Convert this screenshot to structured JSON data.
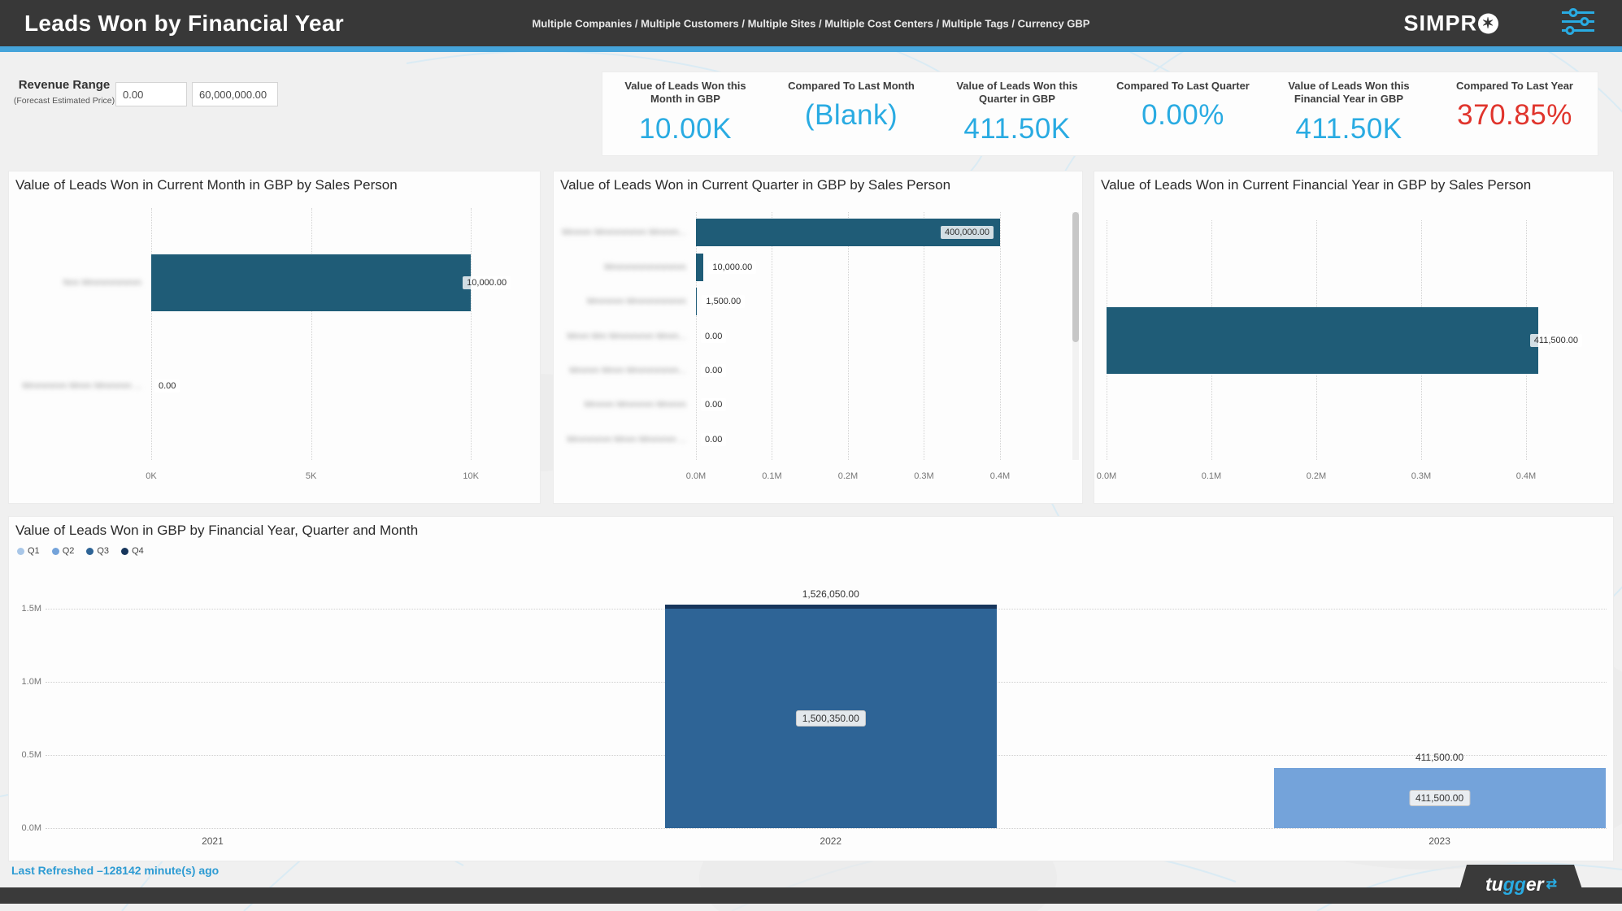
{
  "header": {
    "title": "Leads Won by Financial Year",
    "breadcrumb": "Multiple Companies / Multiple Customers / Multiple Sites / Multiple Cost Centers / Multiple Tags / Currency GBP",
    "brand_prefix": "SIMPR",
    "brand_o_star": "✶"
  },
  "colors": {
    "header_bg": "#383838",
    "accent": "#45a4da",
    "kpi_blue": "#29abe2",
    "kpi_red": "#e0342c",
    "bar_teal": "#1f5c77"
  },
  "filters": {
    "label": "Revenue Range",
    "sublabel": "(Forecast Estimated Price)",
    "min_value": "0.00",
    "max_value": "60,000,000.00"
  },
  "kpis": [
    {
      "label": "Value of Leads Won this Month in GBP",
      "value": "10.00K",
      "color": "#29abe2"
    },
    {
      "label": "Compared To Last Month",
      "value": "(Blank)",
      "color": "#29abe2"
    },
    {
      "label": "Value of Leads Won this Quarter in GBP",
      "value": "411.50K",
      "color": "#29abe2"
    },
    {
      "label": "Compared To Last Quarter",
      "value": "0.00%",
      "color": "#29abe2"
    },
    {
      "label": "Value of Leads Won this Financial Year in GBP",
      "value": "411.50K",
      "color": "#29abe2"
    },
    {
      "label": "Compared To Last Year",
      "value": "370.85%",
      "color": "#e0342c"
    }
  ],
  "chart_data": [
    {
      "id": "month_by_salesperson",
      "type": "bar",
      "orientation": "horizontal",
      "title": "Value of Leads Won in Current Month in GBP by Sales Person",
      "categories_redacted": true,
      "categories": [
        "Nnn Mmmmmmmm",
        "Mmmmmm Mmm Mmmmm ..."
      ],
      "values": [
        10000,
        0
      ],
      "value_labels": [
        "10,000.00",
        "0.00"
      ],
      "xticks": [
        {
          "label": "0K",
          "value": 0
        },
        {
          "label": "5K",
          "value": 5000
        },
        {
          "label": "10K",
          "value": 10000
        }
      ],
      "xmax": 11700,
      "bar_color": "#1f5c77",
      "grid": true,
      "legend": false
    },
    {
      "id": "quarter_by_salesperson",
      "type": "bar",
      "orientation": "horizontal",
      "title": "Value of Leads Won in Current Quarter in GBP by Sales Person",
      "categories_redacted": true,
      "categories": [
        "Mmmm Mmmmmmm Mmmm...",
        "Mmmmmmmmmmm",
        "Mmmmm Mmmmmmmm",
        "Mmm Mm Mmmmmm Mmm...",
        "Mmmm Mmm Mmmmmmm...",
        "Mmmm Mmmmm Mmmm",
        "Mmmmmm Mmm Mmmmm ..."
      ],
      "values": [
        400000,
        10000,
        1500,
        0,
        0,
        0,
        0
      ],
      "value_labels": [
        "400,000.00",
        "10,000.00",
        "1,500.00",
        "0.00",
        "0.00",
        "0.00",
        "0.00"
      ],
      "xticks": [
        {
          "label": "0.0M",
          "value": 0
        },
        {
          "label": "0.1M",
          "value": 100000
        },
        {
          "label": "0.2M",
          "value": 200000
        },
        {
          "label": "0.3M",
          "value": 300000
        },
        {
          "label": "0.4M",
          "value": 400000
        }
      ],
      "xmax": 484500,
      "bar_color": "#1f5c77",
      "grid": true,
      "legend": false,
      "scrollbar": true
    },
    {
      "id": "fy_by_salesperson",
      "type": "bar",
      "orientation": "horizontal",
      "title": "Value of Leads Won in Current Financial Year in GBP by Sales Person",
      "categories_redacted": false,
      "categories": [
        ""
      ],
      "values": [
        411500
      ],
      "value_labels": [
        "411,500.00"
      ],
      "xticks": [
        {
          "label": "0.0M",
          "value": 0
        },
        {
          "label": "0.1M",
          "value": 100000
        },
        {
          "label": "0.2M",
          "value": 200000
        },
        {
          "label": "0.3M",
          "value": 300000
        },
        {
          "label": "0.4M",
          "value": 400000
        }
      ],
      "xmax": 457400,
      "bar_color": "#1f5c77",
      "grid": true,
      "legend": false
    },
    {
      "id": "by_financial_year",
      "type": "stacked-column",
      "title": "Value of Leads Won in GBP by Financial Year, Quarter and Month",
      "categories": [
        "2021",
        "2022",
        "2023"
      ],
      "series": [
        {
          "name": "Q1",
          "color": "#a9c7e8",
          "values": [
            0,
            0,
            0
          ]
        },
        {
          "name": "Q2",
          "color": "#74a3da",
          "values": [
            0,
            0,
            411500
          ]
        },
        {
          "name": "Q3",
          "color": "#2e6496",
          "values": [
            0,
            1500350,
            0
          ]
        },
        {
          "name": "Q4",
          "color": "#17365c",
          "values": [
            0,
            25700,
            0
          ]
        }
      ],
      "stack_totals_labels": [
        "",
        "1,526,050.00",
        "411,500.00"
      ],
      "segment_labels": [
        "",
        "1,500,350.00",
        "411,500.00"
      ],
      "yticks": [
        {
          "label": "0.0M",
          "value": 0
        },
        {
          "label": "0.5M",
          "value": 500000
        },
        {
          "label": "1.0M",
          "value": 1000000
        },
        {
          "label": "1.5M",
          "value": 1500000
        }
      ],
      "ymax": 1650000,
      "grid": true,
      "legend_position": "top-left"
    }
  ],
  "footer": {
    "last_refreshed": "Last Refreshed –128142 minute(s) ago",
    "brand_parts": [
      "tu",
      "gg",
      "er"
    ],
    "brand_icon": "⇄"
  }
}
